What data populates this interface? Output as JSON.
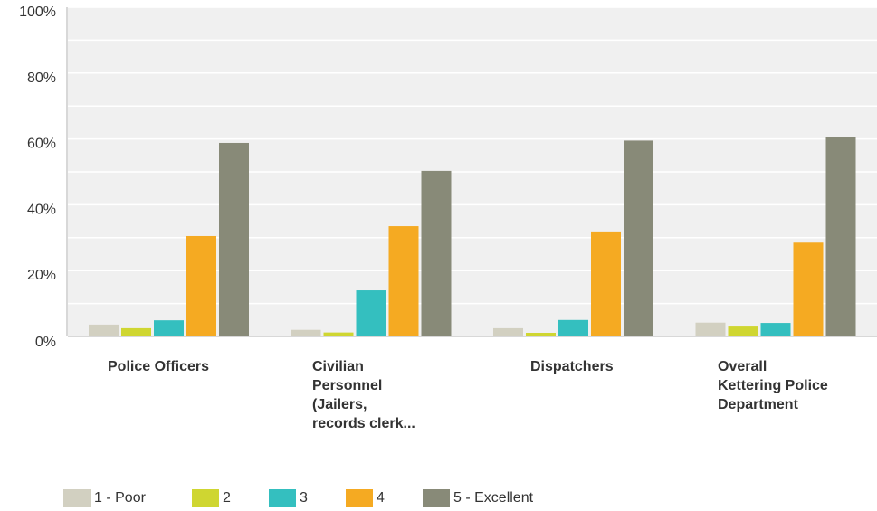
{
  "chart_data": {
    "type": "bar",
    "categories": [
      "Police Officers",
      "Civilian\nPersonnel\n(Jailers,\nrecords clerk...",
      "Dispatchers",
      "Overall\nKettering Police\nDepartment"
    ],
    "series": [
      {
        "name": "1 - Poor",
        "color": "#d2d0c1",
        "values": [
          3.6,
          2.0,
          2.5,
          4.2
        ]
      },
      {
        "name": "2",
        "color": "#cfd631",
        "values": [
          2.5,
          1.2,
          1.1,
          3.0
        ]
      },
      {
        "name": "3",
        "color": "#34bfbf",
        "values": [
          4.9,
          14.0,
          5.0,
          4.1
        ]
      },
      {
        "name": "4",
        "color": "#f5aa22",
        "values": [
          30.5,
          33.5,
          31.9,
          28.5
        ]
      },
      {
        "name": "5 - Excellent",
        "color": "#888a78",
        "values": [
          58.8,
          50.3,
          59.5,
          60.6
        ]
      }
    ],
    "y_ticks": [
      "0%",
      "20%",
      "40%",
      "60%",
      "80%",
      "100%"
    ],
    "ylim": [
      0,
      100
    ],
    "grid": true,
    "legend_position": "bottom-left",
    "plot_background": "#f0f0f0",
    "title": "",
    "xlabel": "",
    "ylabel": ""
  }
}
